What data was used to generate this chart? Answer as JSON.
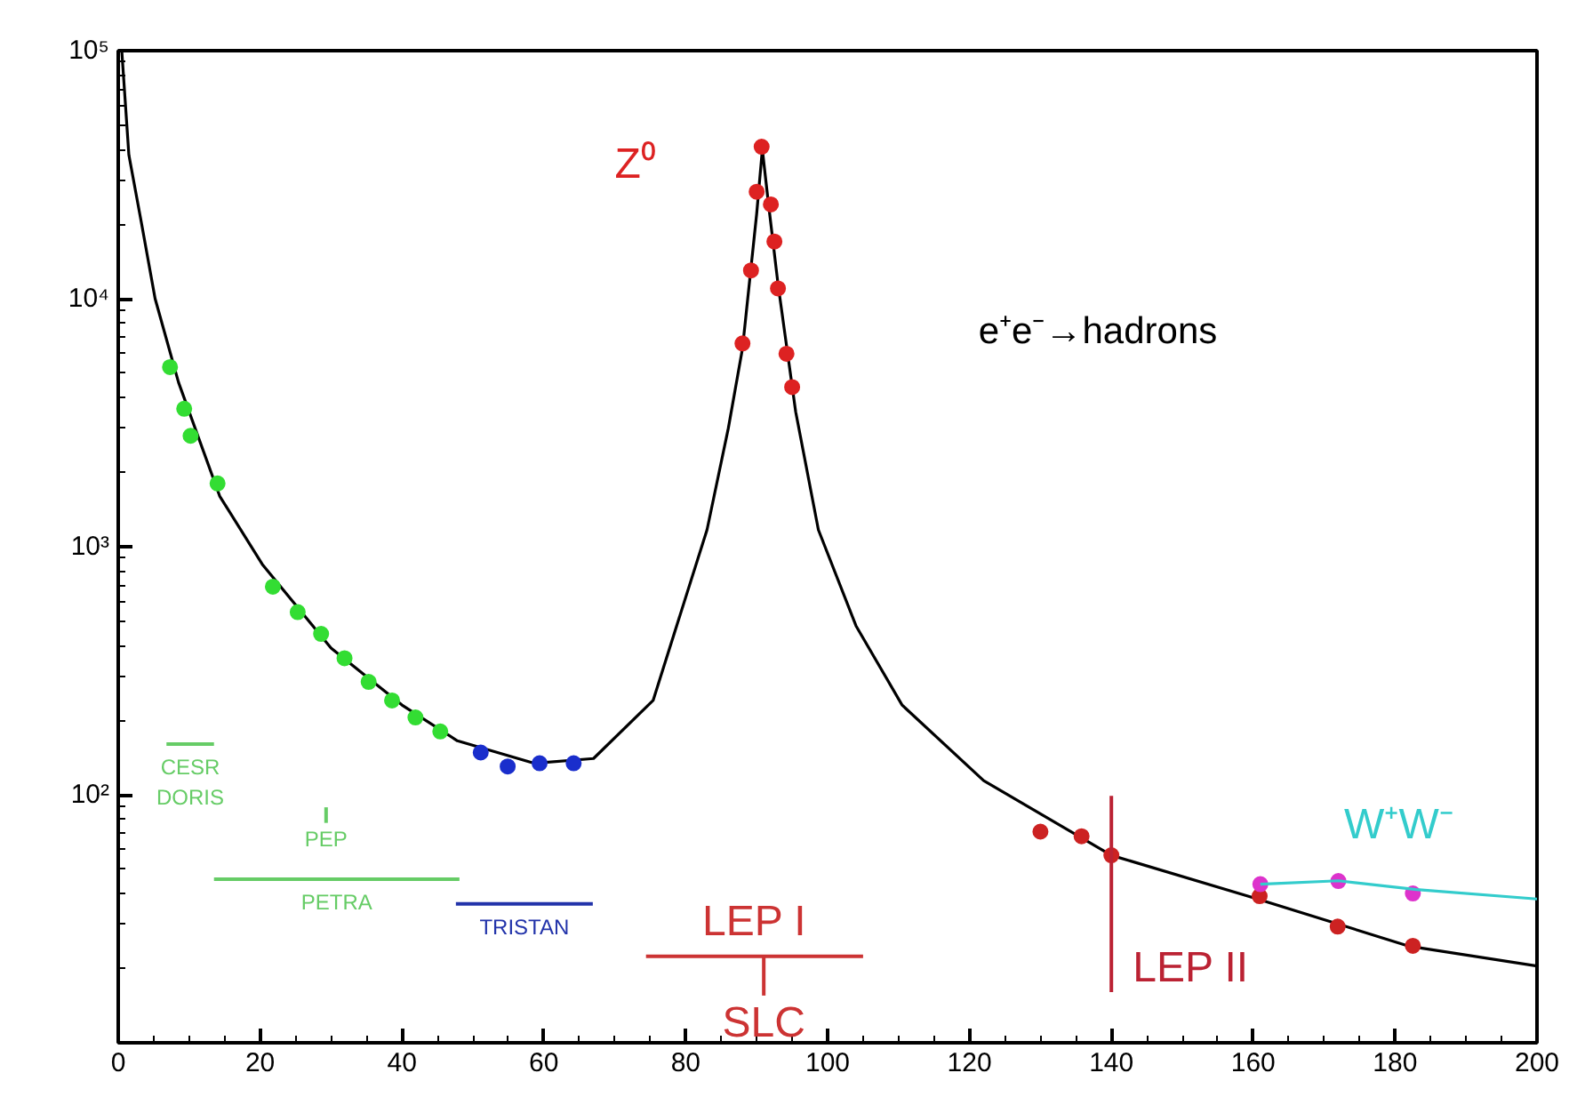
{
  "chart_data": {
    "type": "scatter",
    "xlim": [
      0,
      200
    ],
    "xticks": [
      0,
      20,
      40,
      60,
      80,
      100,
      120,
      140,
      160,
      180,
      200
    ],
    "ylim": [
      10,
      100000
    ],
    "log": "y",
    "yticks": [
      {
        "value": 100,
        "label": "10²"
      },
      {
        "value": 1000,
        "label": "10³"
      },
      {
        "value": 10000,
        "label": "10⁴"
      },
      {
        "value": 100000,
        "label": "10⁵"
      }
    ],
    "grid": false,
    "annotations": [
      "e⁺e⁻→hadrons"
    ],
    "series": [
      {
        "type": "line",
        "color": "#000000",
        "x": [
          0.5,
          1.5,
          3.3,
          5.2,
          8.5,
          14.3,
          20.3,
          30,
          40,
          47.8,
          58.6,
          67,
          75.4,
          83,
          86,
          88,
          90,
          90.8,
          91.6,
          93,
          95.5,
          98.7,
          104,
          110.5,
          122,
          140,
          160.6,
          182,
          200
        ],
        "values": [
          100000,
          38000,
          20000,
          10000,
          4600,
          1600,
          850,
          390,
          230,
          165,
          134,
          140,
          240,
          1170,
          3000,
          6300,
          22000,
          40000,
          25000,
          11500,
          3500,
          1170,
          480,
          230,
          114,
          57,
          38,
          24.5,
          20.4
        ]
      },
      {
        "color": "#33dd33",
        "x": [
          7.3,
          9.3,
          10.2,
          14,
          21.8,
          25.3,
          28.6,
          31.9,
          35.3,
          38.6,
          41.9,
          45.4
        ],
        "values": [
          5300,
          3600,
          2800,
          1800,
          690,
          545,
          445,
          355,
          285,
          240,
          205,
          180
        ]
      },
      {
        "color": "#1a2ecc",
        "x": [
          51.1,
          54.9,
          59.4,
          64.2
        ],
        "values": [
          148,
          130,
          134,
          134
        ]
      },
      {
        "name": "Z⁰",
        "color": "#dd2222",
        "x": [
          88,
          89.2,
          90,
          90.7,
          92,
          92.5,
          93,
          94.2,
          95
        ],
        "values": [
          6600,
          13000,
          27000,
          41000,
          24000,
          17000,
          11000,
          6000,
          4400
        ]
      },
      {
        "color": "#cc2222",
        "x": [
          130,
          135.8,
          140,
          160.9,
          171.9,
          182.5
        ],
        "values": [
          71,
          68,
          57,
          39,
          29.4,
          24.6
        ]
      },
      {
        "color": "#dd33cc",
        "x": [
          161,
          172,
          182.5
        ],
        "values": [
          43.6,
          44.9,
          40
        ]
      },
      {
        "type": "line",
        "name": "W⁺W⁻",
        "color": "#33cccc",
        "x": [
          161,
          172,
          183,
          200
        ],
        "values": [
          43.6,
          45,
          41.5,
          38
        ]
      },
      {
        "type": "line",
        "name": "CESR\nDORIS",
        "color": "#66cc66",
        "x": [
          6.8,
          13.5
        ],
        "values": [
          160,
          160
        ]
      },
      {
        "type": "line",
        "name": "PEP",
        "color": "#66cc66",
        "x": [
          29.3,
          29.3
        ],
        "values": [
          89,
          77
        ]
      },
      {
        "type": "line",
        "name": "PETRA",
        "color": "#66cc66",
        "x": [
          13.5,
          48.1
        ],
        "values": [
          45.7,
          45.7
        ]
      },
      {
        "type": "line",
        "name": "TRISTAN",
        "color": "#2233aa",
        "x": [
          47.6,
          66.9
        ],
        "values": [
          36.3,
          36.3
        ]
      },
      {
        "type": "line",
        "name": "LEP I",
        "color": "#cc3333",
        "x": [
          74.4,
          105
        ],
        "values": [
          22.3,
          22.3
        ]
      },
      {
        "type": "line",
        "name": "SLC",
        "color": "#cc3333",
        "x": [
          91,
          91
        ],
        "values": [
          22.3,
          15.5
        ]
      },
      {
        "type": "line",
        "name": "LEP II",
        "color": "#bb2233",
        "x": [
          140,
          140
        ],
        "values": [
          99,
          16
        ]
      }
    ]
  }
}
